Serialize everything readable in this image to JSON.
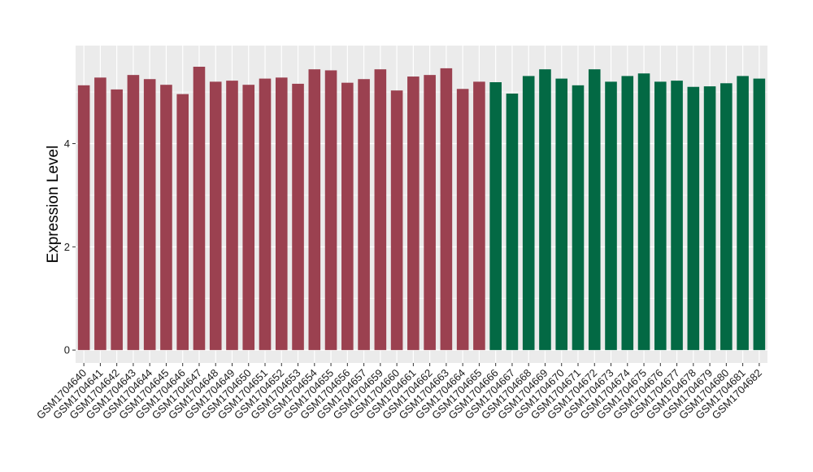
{
  "chart_data": {
    "type": "bar",
    "title": "",
    "xlabel": "",
    "ylabel": "Expression Level",
    "ylim": [
      -0.25,
      5.9
    ],
    "yticks": [
      0,
      2,
      4
    ],
    "grid": true,
    "legend": "none",
    "categories": [
      "GSM1704640",
      "GSM1704641",
      "GSM1704642",
      "GSM1704643",
      "GSM1704644",
      "GSM1704645",
      "GSM1704646",
      "GSM1704647",
      "GSM1704648",
      "GSM1704649",
      "GSM1704650",
      "GSM1704651",
      "GSM1704652",
      "GSM1704653",
      "GSM1704654",
      "GSM1704655",
      "GSM1704656",
      "GSM1704657",
      "GSM1704659",
      "GSM1704660",
      "GSM1704661",
      "GSM1704662",
      "GSM1704663",
      "GSM1704664",
      "GSM1704665",
      "GSM1704666",
      "GSM1704667",
      "GSM1704668",
      "GSM1704669",
      "GSM1704670",
      "GSM1704671",
      "GSM1704672",
      "GSM1704673",
      "GSM1704674",
      "GSM1704675",
      "GSM1704676",
      "GSM1704677",
      "GSM1704678",
      "GSM1704679",
      "GSM1704680",
      "GSM1704681",
      "GSM1704682"
    ],
    "values": [
      5.13,
      5.28,
      5.05,
      5.33,
      5.25,
      5.14,
      4.96,
      5.49,
      5.2,
      5.22,
      5.14,
      5.26,
      5.28,
      5.16,
      5.44,
      5.42,
      5.18,
      5.25,
      5.44,
      5.03,
      5.3,
      5.33,
      5.46,
      5.06,
      5.2,
      5.19,
      4.97,
      5.31,
      5.44,
      5.26,
      5.13,
      5.44,
      5.2,
      5.31,
      5.36,
      5.2,
      5.22,
      5.1,
      5.11,
      5.17,
      5.31,
      5.26
    ],
    "group_sizes": [
      25,
      17
    ],
    "colors": {
      "group_1": "#9b4150",
      "group_2": "#036944",
      "panel_background": "#ebebeb",
      "grid_line": "#ffffff",
      "tick_text": "#1a1a1a"
    }
  }
}
